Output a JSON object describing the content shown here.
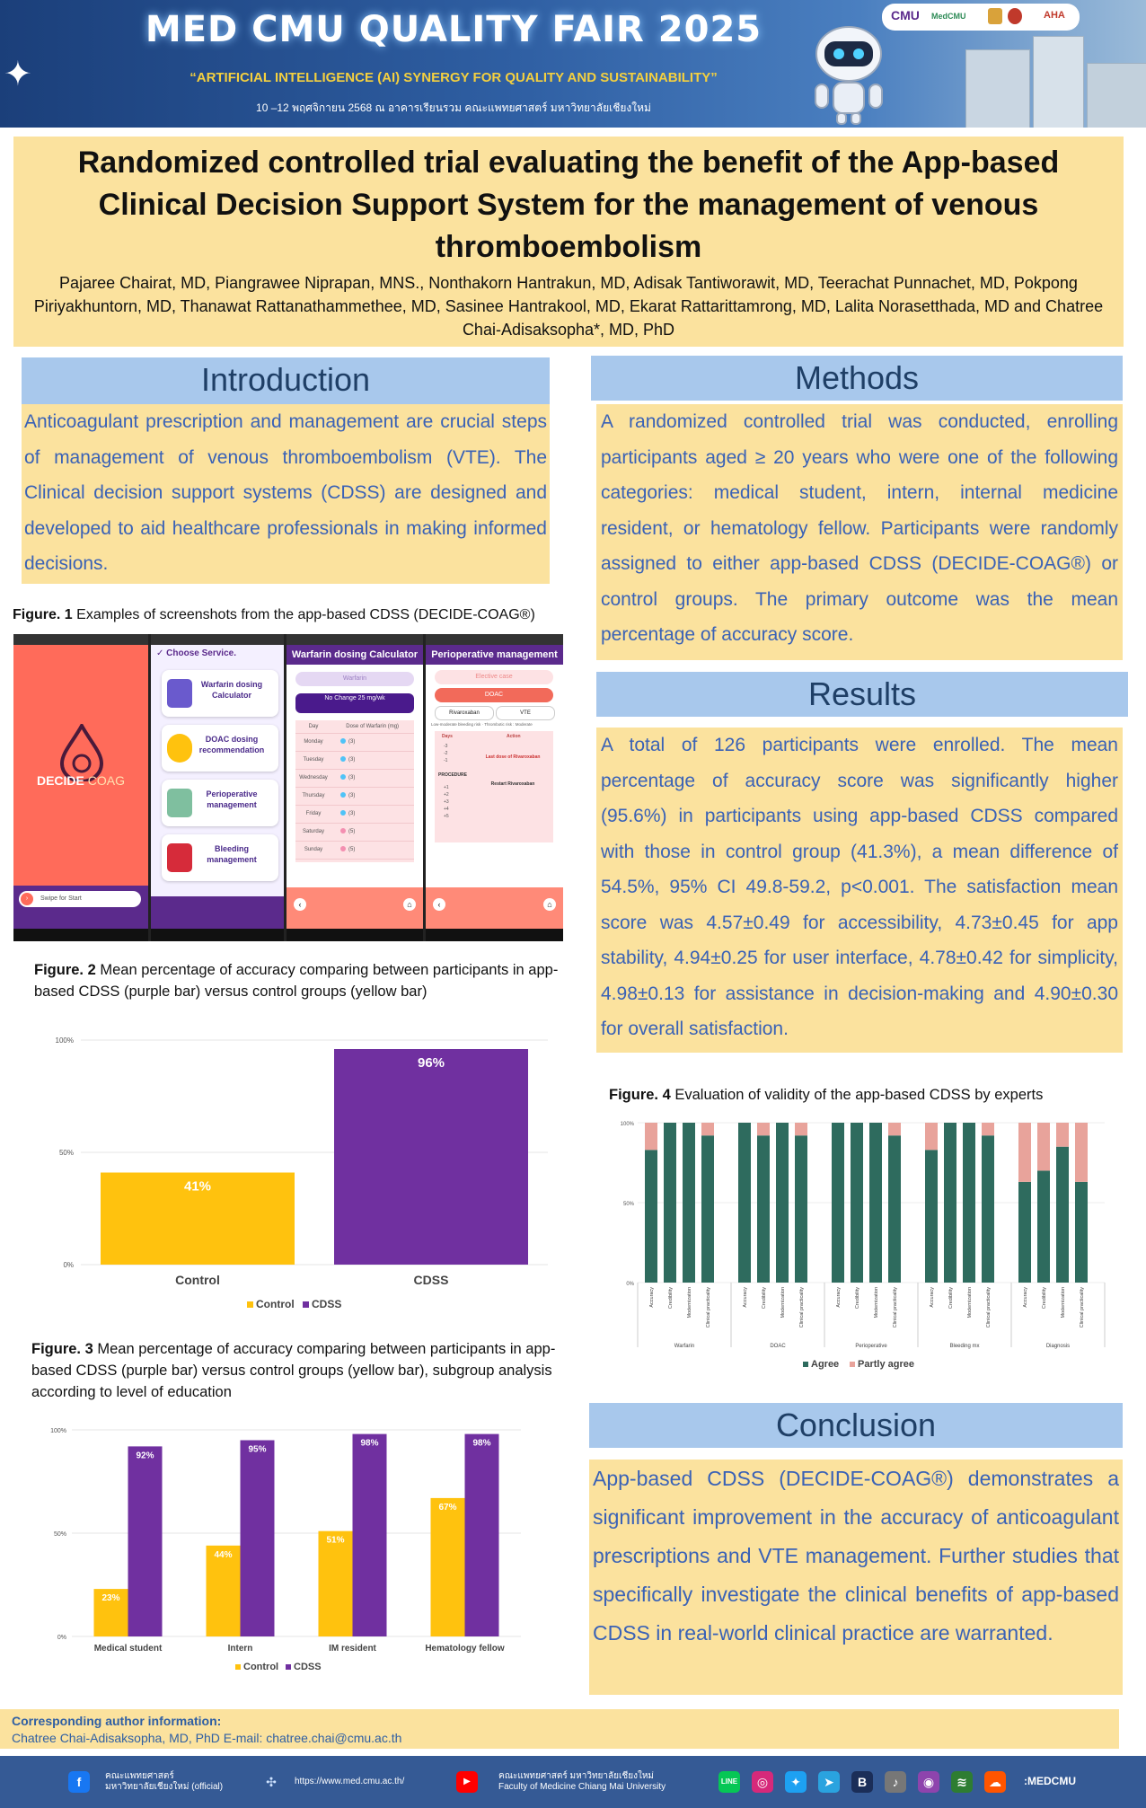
{
  "header": {
    "title": "MED CMU QUALITY FAIR 2025",
    "subtitle": "“ARTIFICIAL INTELLIGENCE (AI) SYNERGY FOR QUALITY AND SUSTAINABILITY”",
    "date": "10 –12 พฤศจิกายน 2568 ณ อาคารเรียนรวม คณะแพทยศาสตร์ มหาวิทยาลัยเชียงใหม่",
    "logos": [
      "CMU",
      "MedCMU",
      "AHA"
    ]
  },
  "paper": {
    "title": "Randomized controlled trial evaluating the benefit of the App-based Clinical Decision Support System for the management of venous thromboembolism",
    "authors": "Pajaree Chairat, MD, Piangrawee Niprapan, MNS., Nonthakorn Hantrakun, MD, Adisak Tantiworawit, MD, Teerachat Punnachet, MD, Pokpong Piriyakhuntorn, MD, Thanawat Rattanathammethee, MD, Sasinee Hantrakool, MD, Ekarat Rattarittamrong, MD, Lalita Norasetthada, MD and Chatree Chai-Adisaksopha*, MD, PhD"
  },
  "introduction": {
    "heading": "Introduction",
    "text": "Anticoagulant prescription and management are crucial steps of management of venous thromboembolism (VTE). The Clinical decision support systems (CDSS) are designed and developed to aid healthcare professionals in making informed decisions."
  },
  "methods": {
    "heading": "Methods",
    "text": "A randomized controlled trial was conducted, enrolling participants aged ≥ 20 years who were one of the following categories: medical student, intern, internal medicine resident, or hematology fellow. Participants were randomly assigned to either app-based CDSS (DECIDE-COAG®) or control groups. The primary outcome was the mean percentage of accuracy score."
  },
  "results": {
    "heading": "Results",
    "text": "A total of 126 participants were enrolled. The mean percentage of accuracy score was significantly higher (95.6%) in participants using app-based CDSS compared with those in control group (41.3%), a mean difference of 54.5%, 95% CI 49.8-59.2, p<0.001. The satisfaction mean score was 4.57±0.49 for accessibility, 4.73±0.45 for app stability, 4.94±0.25 for user interface, 4.78±0.42 for simplicity, 4.98±0.13 for assistance in decision-making and 4.90±0.30 for overall satisfaction."
  },
  "conclusion": {
    "heading": "Conclusion",
    "text": "App-based CDSS (DECIDE-COAG®) demonstrates a significant improvement in the accuracy of anticoagulant prescriptions and VTE management. Further studies that specifically investigate the clinical benefits of app-based CDSS in real-world clinical practice are warranted."
  },
  "figures": {
    "fig1": {
      "label": "Figure. 1",
      "caption": "Examples of screenshots from the app-based CDSS (DECIDE-COAG®)",
      "app": {
        "brand_a": "DECIDE",
        "brand_b": "COAG",
        "swipe": "Swipe for Start",
        "choose": "Choose Service.",
        "services": [
          "Warfarin dosing Calculator",
          "DOAC dosing recommendation",
          "Perioperative management",
          "Bleeding management"
        ],
        "warfarin_title": "Warfarin dosing Calculator",
        "warfarin_drug": "Warfarin",
        "warfarin_result": "No Change 25 mg/wk",
        "warfarin_col_day": "Day",
        "warfarin_col_dose": "Dose of Warfarin (mg)",
        "days": [
          "Monday",
          "Tuesday",
          "Wednesday",
          "Thursday",
          "Friday",
          "Saturday",
          "Sunday"
        ],
        "doses": [
          "(3)",
          "(3)",
          "(3)",
          "(3)",
          "(3)",
          "(5)",
          "(5)"
        ],
        "periop_title": "Perioperative management",
        "periop_case": "Elective case",
        "periop_drug_class": "DOAC",
        "periop_opt1": "Rivaroxaban",
        "periop_opt2": "VTE",
        "periop_note": "Low-moderate bleeding risk · Thrombotic risk : Moderate",
        "periop_col_days": "Days",
        "periop_col_action": "Action",
        "periop_last_dose": "Last dose of Rivaroxaban",
        "periop_procedure": "PROCEDURE",
        "periop_restart": "Restart Rivaroxaban",
        "periop_pre_days": [
          "-3",
          "-2",
          "-1"
        ],
        "periop_post_days": [
          "+1",
          "+2",
          "+3",
          "+4",
          "+5"
        ]
      }
    },
    "fig2": {
      "label": "Figure. 2",
      "caption": "Mean percentage of accuracy comparing between participants in app-based CDSS (purple bar) versus control groups (yellow bar)"
    },
    "fig3": {
      "label": "Figure. 3",
      "caption": "Mean percentage of accuracy comparing between participants in app-based CDSS (purple bar) versus control groups (yellow bar), subgroup analysis according to level of education"
    },
    "fig4": {
      "label": "Figure. 4",
      "caption": "Evaluation of validity of the app-based CDSS by experts"
    }
  },
  "chart_data": [
    {
      "id": "fig2",
      "type": "bar",
      "categories": [
        "Control",
        "CDSS"
      ],
      "values": [
        41,
        96
      ],
      "data_labels": [
        "41%",
        "96%"
      ],
      "colors": [
        "#ffc20e",
        "#7030a0"
      ],
      "yticks": [
        "0%",
        "50%",
        "100%"
      ],
      "ylim": [
        0,
        100
      ],
      "legend": [
        "Control",
        "CDSS"
      ],
      "legend_position": "bottom"
    },
    {
      "id": "fig3",
      "type": "bar",
      "categories": [
        "Medical student",
        "Intern",
        "IM resident",
        "Hematology fellow"
      ],
      "series": [
        {
          "name": "Control",
          "values": [
            23,
            44,
            51,
            67
          ],
          "labels": [
            "23%",
            "44%",
            "51%",
            "67%"
          ],
          "color": "#ffc20e"
        },
        {
          "name": "CDSS",
          "values": [
            92,
            95,
            98,
            98
          ],
          "labels": [
            "92%",
            "95%",
            "98%",
            "98%"
          ],
          "color": "#7030a0"
        }
      ],
      "yticks": [
        "0%",
        "50%",
        "100%"
      ],
      "ylim": [
        0,
        100
      ],
      "legend_position": "bottom"
    },
    {
      "id": "fig4",
      "type": "bar",
      "stacked": true,
      "groups": [
        "Warfarin",
        "DOAC",
        "Perioperative",
        "Bleeding mx",
        "Diagnosis"
      ],
      "criteria": [
        "Accuracy",
        "Credibility",
        "Modernization",
        "Clinical practicality"
      ],
      "series": [
        {
          "name": "Agree",
          "color": "#2e6b5e",
          "values": [
            [
              83,
              100,
              100,
              92
            ],
            [
              100,
              92,
              100,
              92
            ],
            [
              100,
              100,
              100,
              92
            ],
            [
              83,
              100,
              100,
              92
            ],
            [
              63,
              70,
              85,
              63
            ]
          ]
        },
        {
          "name": "Partly agree",
          "color": "#e8a39b",
          "values": [
            [
              17,
              0,
              0,
              8
            ],
            [
              0,
              8,
              0,
              8
            ],
            [
              0,
              0,
              0,
              8
            ],
            [
              17,
              0,
              0,
              8
            ],
            [
              37,
              30,
              15,
              37
            ]
          ]
        }
      ],
      "yticks": [
        "0%",
        "50%",
        "100%"
      ],
      "ylim": [
        0,
        100
      ],
      "legend_position": "bottom"
    }
  ],
  "footer": {
    "corr_title": "Corresponding author information:",
    "corr_text": "Chatree Chai-Adisaksopha, MD, PhD  E-mail: chatree.chai@cmu.ac.th",
    "fb_text_1": "คณะแพทยศาสตร์",
    "fb_text_2": "มหาวิทยาลัยเชียงใหม่ (official)",
    "website": "https://www.med.cmu.ac.th/",
    "yt_text_1": "คณะแพทยศาสตร์ มหาวิทยาลัยเชียงใหม่",
    "yt_text_2": "Faculty of Medicine Chiang Mai University",
    "handle": ":MEDCMU",
    "social_icons": [
      "line-icon",
      "instagram-icon",
      "twitter-icon",
      "telegram-icon",
      "blockdit-icon",
      "tiktok-icon",
      "podcast-icon",
      "wifi-icon",
      "soundcloud-icon"
    ]
  }
}
